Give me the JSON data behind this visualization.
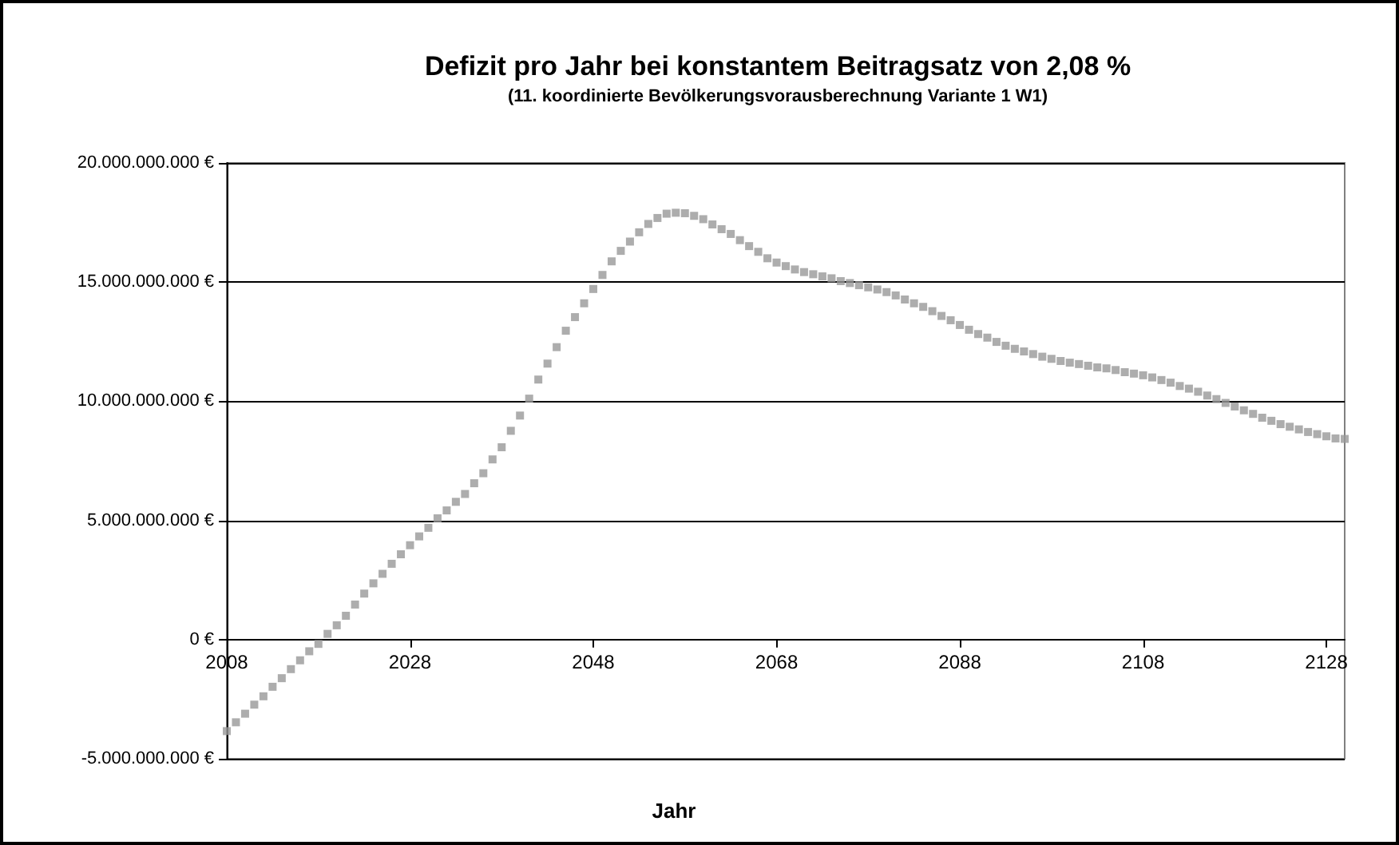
{
  "chart_data": {
    "type": "scatter",
    "title": "Defizit pro Jahr bei konstantem Beitragsatz von 2,08 %",
    "subtitle": "(11. koordinierte Bevölkerungsvorausberechnung Variante 1 W1)",
    "xlabel": "Jahr",
    "x": [
      2008,
      2009,
      2010,
      2011,
      2012,
      2013,
      2014,
      2015,
      2016,
      2017,
      2018,
      2019,
      2020,
      2021,
      2022,
      2023,
      2024,
      2025,
      2026,
      2027,
      2028,
      2029,
      2030,
      2031,
      2032,
      2033,
      2034,
      2035,
      2036,
      2037,
      2038,
      2039,
      2040,
      2041,
      2042,
      2043,
      2044,
      2045,
      2046,
      2047,
      2048,
      2049,
      2050,
      2051,
      2052,
      2053,
      2054,
      2055,
      2056,
      2057,
      2058,
      2059,
      2060,
      2061,
      2062,
      2063,
      2064,
      2065,
      2066,
      2067,
      2068,
      2069,
      2070,
      2071,
      2072,
      2073,
      2074,
      2075,
      2076,
      2077,
      2078,
      2079,
      2080,
      2081,
      2082,
      2083,
      2084,
      2085,
      2086,
      2087,
      2088,
      2089,
      2090,
      2091,
      2092,
      2093,
      2094,
      2095,
      2096,
      2097,
      2098,
      2099,
      2100,
      2101,
      2102,
      2103,
      2104,
      2105,
      2106,
      2107,
      2108,
      2109,
      2110,
      2111,
      2112,
      2113,
      2114,
      2115,
      2116,
      2117,
      2118,
      2119,
      2120,
      2121,
      2122,
      2123,
      2124,
      2125,
      2126,
      2127,
      2128,
      2129,
      2130
    ],
    "series": [
      {
        "color": "#999999",
        "values": [
          -3840000000.0,
          -3470000000.0,
          -3110000000.0,
          -2730000000.0,
          -2380000000.0,
          -1980000000.0,
          -1620000000.0,
          -1240000000.0,
          -870000000.0,
          -490000000.0,
          -180000000.0,
          240000000.0,
          600000000.0,
          1000000000.0,
          1470000000.0,
          1930000000.0,
          2360000000.0,
          2760000000.0,
          3180000000.0,
          3580000000.0,
          3960000000.0,
          4330000000.0,
          4690000000.0,
          5090000000.0,
          5420000000.0,
          5780000000.0,
          6110000000.0,
          6560000000.0,
          6980000000.0,
          7560000000.0,
          8070000000.0,
          8760000000.0,
          9400000000.0,
          10110000000.0,
          10910000000.0,
          11580000000.0,
          12270000000.0,
          12960000000.0,
          13530000000.0,
          14110000000.0,
          14710000000.0,
          15300000000.0,
          15870000000.0,
          16310000000.0,
          16700000000.0,
          17090000000.0,
          17440000000.0,
          17690000000.0,
          17870000000.0,
          17910000000.0,
          17890000000.0,
          17780000000.0,
          17640000000.0,
          17420000000.0,
          17220000000.0,
          17020000000.0,
          16760000000.0,
          16510000000.0,
          16270000000.0,
          16000000000.0,
          15820000000.0,
          15670000000.0,
          15530000000.0,
          15420000000.0,
          15330000000.0,
          15240000000.0,
          15160000000.0,
          15040000000.0,
          14960000000.0,
          14870000000.0,
          14780000000.0,
          14690000000.0,
          14580000000.0,
          14440000000.0,
          14270000000.0,
          14110000000.0,
          13960000000.0,
          13780000000.0,
          13580000000.0,
          13400000000.0,
          13200000000.0,
          13000000000.0,
          12820000000.0,
          12670000000.0,
          12490000000.0,
          12330000000.0,
          12200000000.0,
          12090000000.0,
          11980000000.0,
          11870000000.0,
          11780000000.0,
          11690000000.0,
          11620000000.0,
          11560000000.0,
          11490000000.0,
          11420000000.0,
          11380000000.0,
          11310000000.0,
          11220000000.0,
          11160000000.0,
          11090000000.0,
          11000000000.0,
          10890000000.0,
          10780000000.0,
          10640000000.0,
          10530000000.0,
          10400000000.0,
          10240000000.0,
          10090000000.0,
          9930000000.0,
          9780000000.0,
          9620000000.0,
          9470000000.0,
          9310000000.0,
          9180000000.0,
          9040000000.0,
          8930000000.0,
          8820000000.0,
          8710000000.0,
          8620000000.0,
          8530000000.0,
          8440000000.0,
          8420000000.0
        ]
      }
    ],
    "xlim": [
      2008,
      2130
    ],
    "xticks": [
      2008,
      2028,
      2048,
      2068,
      2088,
      2108,
      2128
    ],
    "ylim": [
      -5000000000.0,
      20000000000.0
    ],
    "yticks": [
      {
        "value": -5000000000.0,
        "label": "-5.000.000.000 €"
      },
      {
        "value": 0,
        "label": "0 €"
      },
      {
        "value": 5000000000.0,
        "label": "5.000.000.000 €"
      },
      {
        "value": 10000000000.0,
        "label": "10.000.000.000 €"
      },
      {
        "value": 15000000000.0,
        "label": "15.000.000.000 €"
      },
      {
        "value": 20000000000.0,
        "label": "20.000.000.000 €"
      }
    ],
    "grid": "y",
    "marker": "square"
  }
}
